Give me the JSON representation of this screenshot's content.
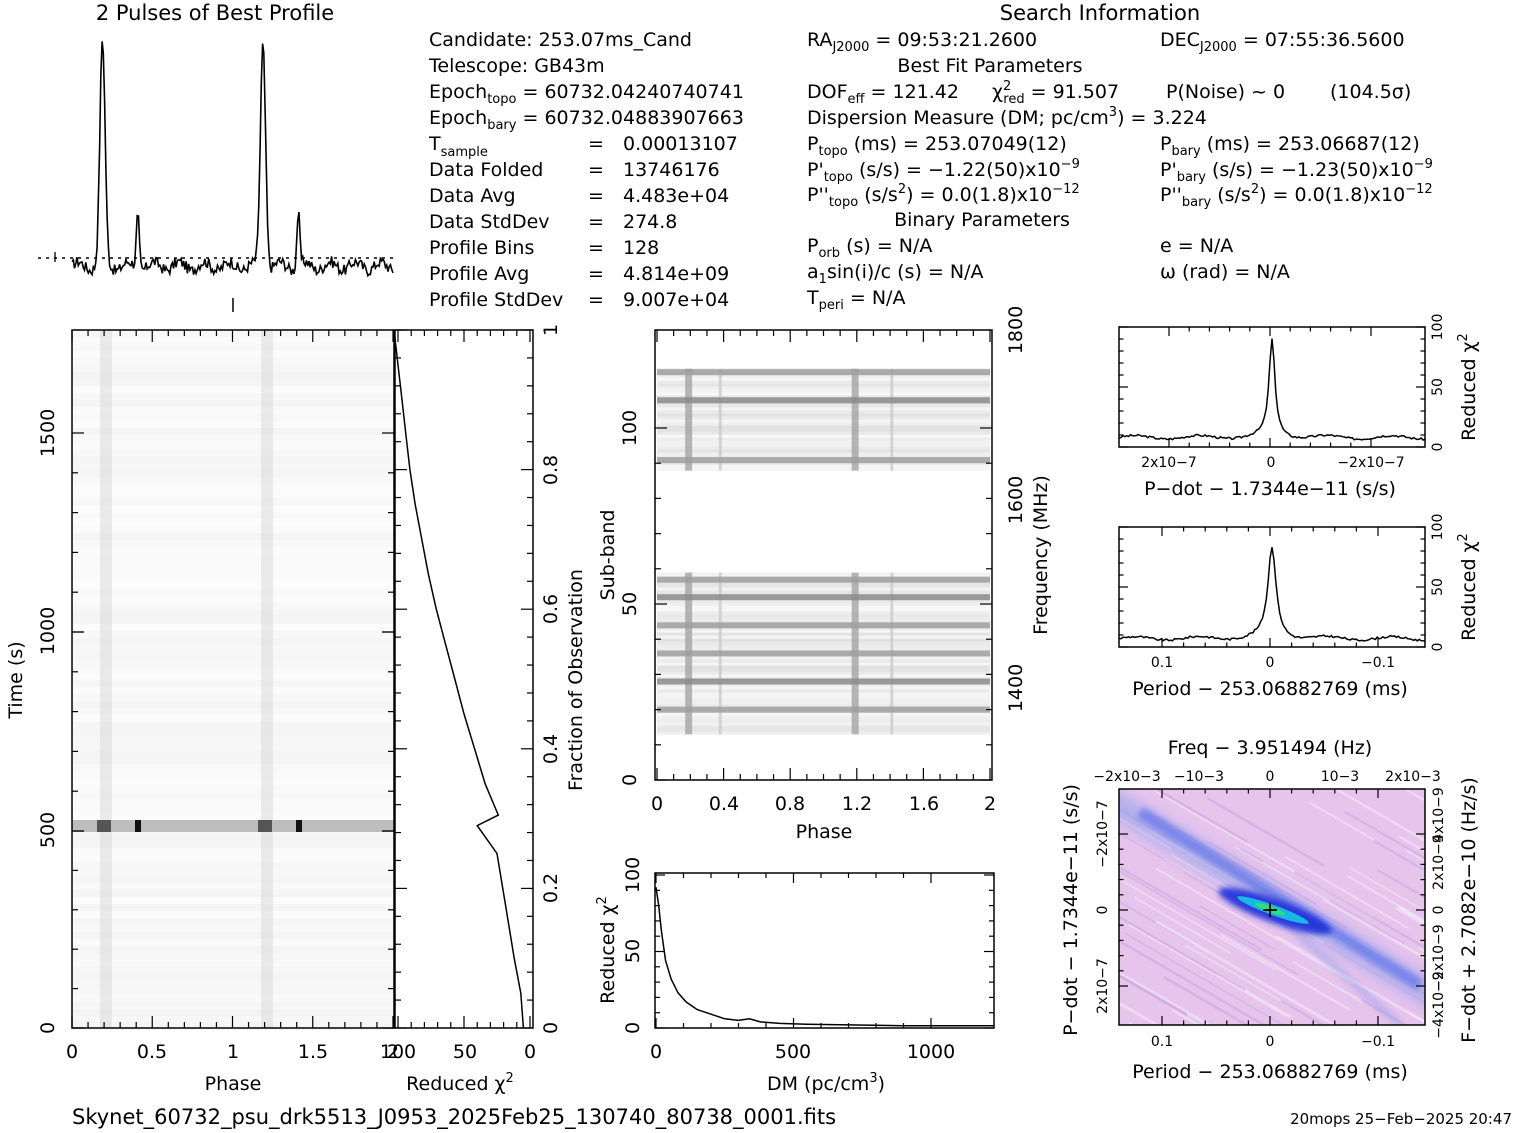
{
  "profile": {
    "title": "2 Pulses of Best Profile"
  },
  "search_header": "Search Information",
  "info": {
    "candidate": "Candidate:  253.07ms_Cand",
    "telescope": "Telescope:  GB43m",
    "epoch_topo_label": "Epoch",
    "epoch_topo_sub": "topo",
    "epoch_topo_val": " = 60732.04240740741",
    "epoch_bary_label": "Epoch",
    "epoch_bary_sub": "bary",
    "epoch_bary_val": " = 60732.04883907663",
    "tsample_label": "T",
    "tsample_sub": "sample",
    "tsample_eq": "=",
    "tsample_val": "0.00013107",
    "rows": [
      {
        "label": "Data Folded",
        "eq": "=",
        "val": "13746176"
      },
      {
        "label": "Data Avg",
        "eq": "=",
        "val": "4.483e+04"
      },
      {
        "label": "Data StdDev",
        "eq": "=",
        "val": "274.8"
      },
      {
        "label": "Profile Bins",
        "eq": "=",
        "val": "128"
      },
      {
        "label": "Profile Avg",
        "eq": "=",
        "val": "4.814e+09"
      },
      {
        "label": "Profile StdDev",
        "eq": "=",
        "val": "9.007e+04"
      }
    ],
    "ra_label": "RA",
    "ra_sub": "J2000",
    "ra_val": " = 09:53:21.2600",
    "dec_label": "DEC",
    "dec_sub": "J2000",
    "dec_val": " = 07:55:36.5600",
    "best_fit_header": "Best Fit Parameters",
    "dof_label": "DOF",
    "dof_sub": "eff",
    "dof_val": " = 121.42",
    "chi_label": "χ",
    "chi_sup": "2",
    "chi_sub": "red",
    "chi_val": " = 91.507",
    "pnoise": "P(Noise) ~ 0",
    "sigma": "(104.5σ)",
    "dm_label": "Dispersion Measure (DM; pc/cm",
    "dm_sup": "3",
    "dm_val": ") = 3.224",
    "ptopo_label": "P",
    "ptopo_sub": "topo",
    "ptopo_val": " (ms) =  253.07049(12)",
    "pbary_label": "P",
    "pbary_sub": "bary",
    "pbary_val": " (ms) =  253.06687(12)",
    "pdtopo_label": "P'",
    "pdtopo_sub": "topo",
    "pdtopo_val": " (s/s) = −1.22(50)x10",
    "pdtopo_exp": "−9",
    "pdbary_label": "P'",
    "pdbary_sub": "bary",
    "pdbary_val": " (s/s) = −1.23(50)x10",
    "pdbary_exp": "−9",
    "pddtopo_label": "P''",
    "pddtopo_sub": "topo",
    "pddtopo_val": " (s/s",
    "pddtopo_sup": "2",
    "pddtopo_val2": ") = 0.0(1.8)x10",
    "pddtopo_exp": "−12",
    "pddbary_label": "P''",
    "pddbary_sub": "bary",
    "pddbary_val": " (s/s",
    "pddbary_sup": "2",
    "pddbary_val2": ") = 0.0(1.8)x10",
    "pddbary_exp": "−12",
    "binary_header": "Binary Parameters",
    "porb_label": "P",
    "porb_sub": "orb",
    "porb_val": " (s) = N/A",
    "e_val": "e = N/A",
    "a1_label": "a",
    "a1_sub": "1",
    "a1_val": "sin(i)/c (s) = N/A",
    "omega_val": "ω (rad) = N/A",
    "tperi_label": "T",
    "tperi_sub": "peri",
    "tperi_val": " = N/A"
  },
  "footer": {
    "filename": "Skynet_60732_psu_drk5513_J0953_2025Feb25_130740_80738_0001.fits",
    "stamp": "20mops 25−Feb−2025 20:47"
  },
  "chart_data": [
    {
      "type": "line",
      "id": "pulse_profile",
      "title": "2 Pulses of Best Profile",
      "x_range": [
        0,
        2
      ],
      "peaks": [
        {
          "phase": 0.19,
          "height": 1.0
        },
        {
          "phase": 0.41,
          "height": 0.24
        },
        {
          "phase": 1.19,
          "height": 1.0
        },
        {
          "phase": 1.41,
          "height": 0.24
        }
      ]
    },
    {
      "type": "heatmap",
      "id": "time_phase",
      "xlabel": "Phase",
      "ylabel": "Time (s)",
      "xlim": [
        0,
        2
      ],
      "ylim": [
        0,
        1760
      ],
      "xticks": [
        "0",
        "0.5",
        "1",
        "1.5",
        "2"
      ],
      "yticks": [
        "0",
        "500",
        "1000",
        "1500"
      ],
      "pulse_phases": [
        0.19,
        1.19
      ],
      "bright_band_time": 510
    },
    {
      "type": "line",
      "id": "chi2_vs_fraction",
      "xlabel": "Reduced χ2",
      "ylabel": "Fraction of Observation",
      "xticks": [
        "100",
        "50",
        "0"
      ],
      "yticks": [
        "0",
        "0.2",
        "0.4",
        "0.6",
        "0.8",
        "1"
      ],
      "x_reversed": true,
      "xlim": [
        0,
        100
      ],
      "ylim": [
        0,
        1
      ],
      "points": [
        [
          5,
          0
        ],
        [
          7,
          0.05
        ],
        [
          12,
          0.1
        ],
        [
          18,
          0.17
        ],
        [
          25,
          0.25
        ],
        [
          40,
          0.29
        ],
        [
          24,
          0.305
        ],
        [
          34,
          0.35
        ],
        [
          42,
          0.4
        ],
        [
          50,
          0.45
        ],
        [
          57,
          0.5
        ],
        [
          64,
          0.55
        ],
        [
          71,
          0.6
        ],
        [
          77,
          0.65
        ],
        [
          82,
          0.7
        ],
        [
          87,
          0.75
        ],
        [
          91,
          0.8
        ],
        [
          94,
          0.85
        ],
        [
          97,
          0.9
        ],
        [
          100,
          0.95
        ],
        [
          103,
          1.0
        ]
      ]
    },
    {
      "type": "heatmap",
      "id": "subband_phase",
      "xlabel": "Phase",
      "ylabel": "Sub-band",
      "y2label": "Frequency (MHz)",
      "xlim": [
        0,
        2
      ],
      "ylim": [
        0,
        128
      ],
      "xticks": [
        "0",
        "0.4",
        "0.8",
        "1.2",
        "1.6",
        "2"
      ],
      "yticks": [
        "0",
        "50",
        "100"
      ],
      "y2ticks": [
        "1400",
        "1600",
        "1800"
      ],
      "active_bands": [
        [
          13,
          59
        ],
        [
          88,
          117
        ]
      ],
      "bright_subbands": [
        20,
        28,
        36,
        44,
        52,
        57,
        91,
        108,
        116
      ],
      "pulse_phases": [
        0.19,
        1.19,
        0.38,
        1.41
      ]
    },
    {
      "type": "line",
      "id": "dm_curve",
      "xlabel": "DM (pc/cm3)",
      "ylabel": "Reduced χ2",
      "xlim": [
        0,
        1230
      ],
      "ylim": [
        0,
        100
      ],
      "xticks": [
        "0",
        "500",
        "1000"
      ],
      "yticks": [
        "0",
        "50",
        "100"
      ],
      "points": [
        [
          0,
          92
        ],
        [
          10,
          80
        ],
        [
          20,
          63
        ],
        [
          35,
          44
        ],
        [
          55,
          32
        ],
        [
          80,
          23
        ],
        [
          110,
          17
        ],
        [
          150,
          12
        ],
        [
          200,
          9
        ],
        [
          250,
          6
        ],
        [
          300,
          5
        ],
        [
          340,
          6
        ],
        [
          380,
          4
        ],
        [
          450,
          3
        ],
        [
          550,
          2.5
        ],
        [
          700,
          2
        ],
        [
          900,
          1.5
        ],
        [
          1100,
          1.5
        ],
        [
          1230,
          1.5
        ]
      ]
    },
    {
      "type": "line",
      "id": "pdot_curve",
      "xlabel": "P−dot − 1.7344e−11 (s/s)",
      "ylabel": "Reduced χ2",
      "xlim": [
        3e-07,
        -3e-07
      ],
      "ylim": [
        0,
        100
      ],
      "xticks": [
        "2x10−7",
        "0",
        "−2x10−7"
      ],
      "yticks": [
        "0",
        "50",
        "100"
      ],
      "peak_value": 89,
      "baseline": 8
    },
    {
      "type": "line",
      "id": "period_curve",
      "xlabel": "Period − 253.06882769 (ms)",
      "ylabel": "Reduced χ2",
      "xlim": [
        0.15,
        -0.15
      ],
      "ylim": [
        0,
        100
      ],
      "xticks": [
        "0.1",
        "0",
        "−0.1"
      ],
      "yticks": [
        "0",
        "50",
        "100"
      ],
      "peak_value": 83,
      "baseline": 7
    },
    {
      "type": "heatmap",
      "id": "p_pdot_plane",
      "title": "Freq − 3.951494 (Hz)",
      "xlabel": "Period − 253.06882769 (ms)",
      "ylabel": "P−dot − 1.7344e−11 (s/s)",
      "y2label": "F−dot + 2.7082e−10 (Hz/s)",
      "xticks": [
        "0.1",
        "0",
        "−0.1"
      ],
      "x2ticks": [
        "−2x10−3",
        "−10−3",
        "0",
        "10−3",
        "2x10−3"
      ],
      "yticks": [
        "−2x10−7",
        "0",
        "2x10−7"
      ],
      "y2ticks": [
        "4x10−9",
        "2x10−9",
        "0",
        "−2x10−9",
        "−4x10−9"
      ]
    }
  ]
}
